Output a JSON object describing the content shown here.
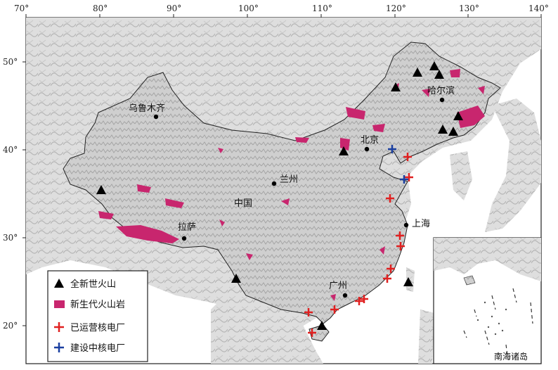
{
  "map": {
    "lon_ticks": [
      "70°",
      "80°",
      "90°",
      "100°",
      "110°",
      "120°",
      "130°",
      "140°"
    ],
    "lat_ticks": [
      "50°",
      "40°",
      "30°",
      "20°"
    ],
    "cities": {
      "urumqi": "乌鲁木齐",
      "harbin": "哈尔滨",
      "beijing": "北京",
      "lanzhou": "兰州",
      "china": "中国",
      "lhasa": "拉萨",
      "shanghai": "上海",
      "guangzhou": "广州"
    },
    "inset_label": "南海诸岛",
    "legend": {
      "volcano": "全新世火山",
      "cenozoic_rock": "新生代火山岩",
      "operating_plant": "已运营核电厂",
      "construction_plant": "建设中核电厂"
    },
    "colors": {
      "volcano": "#000000",
      "cenozoic_rock": "#c8266e",
      "operating_plant": "#e02020",
      "construction_plant": "#1a3fa0",
      "relief": "#c9c9c9",
      "sea": "#ffffff"
    },
    "icons": [
      "triangle-volcano-icon",
      "magenta-rect-icon",
      "red-plus-icon",
      "blue-plus-icon"
    ]
  }
}
